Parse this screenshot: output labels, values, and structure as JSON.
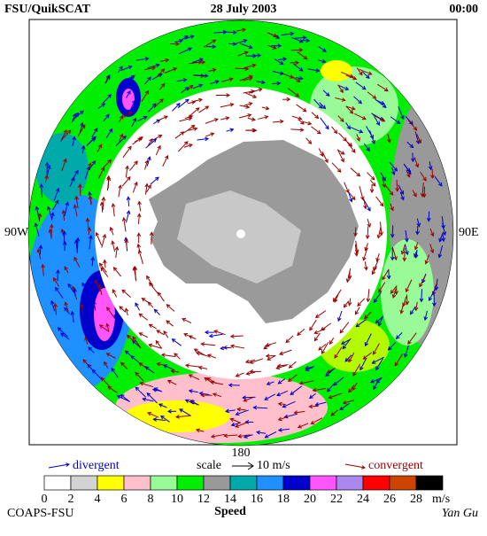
{
  "header": {
    "title": "FSU/QuikSCAT",
    "date": "28 July 2003",
    "time": "00:00"
  },
  "map": {
    "left_label": "90W",
    "right_label": "90E",
    "bottom_label": "180"
  },
  "legend": {
    "divergent": "divergent",
    "scale": "scale",
    "scale_value": "10 m/s",
    "convergent": "convergent",
    "divergent_color": "#0000cc",
    "convergent_color": "#990000"
  },
  "colorbar": {
    "ticks": [
      0,
      2,
      4,
      6,
      8,
      10,
      12,
      14,
      16,
      18,
      20,
      22,
      24,
      26,
      28
    ],
    "unit": "m/s",
    "label": "Speed",
    "colors": [
      "#ffffff",
      "#d3d3d3",
      "#ffff00",
      "#ffc0cb",
      "#98fb98",
      "#00ee00",
      "#999999",
      "#00aaaa",
      "#1e90ff",
      "#0000cd",
      "#ff55ff",
      "#aa88ee",
      "#ff0000",
      "#cc4400",
      "#000000"
    ]
  },
  "footer": {
    "left": "COAPS-FSU",
    "right": "Yan Gu"
  }
}
